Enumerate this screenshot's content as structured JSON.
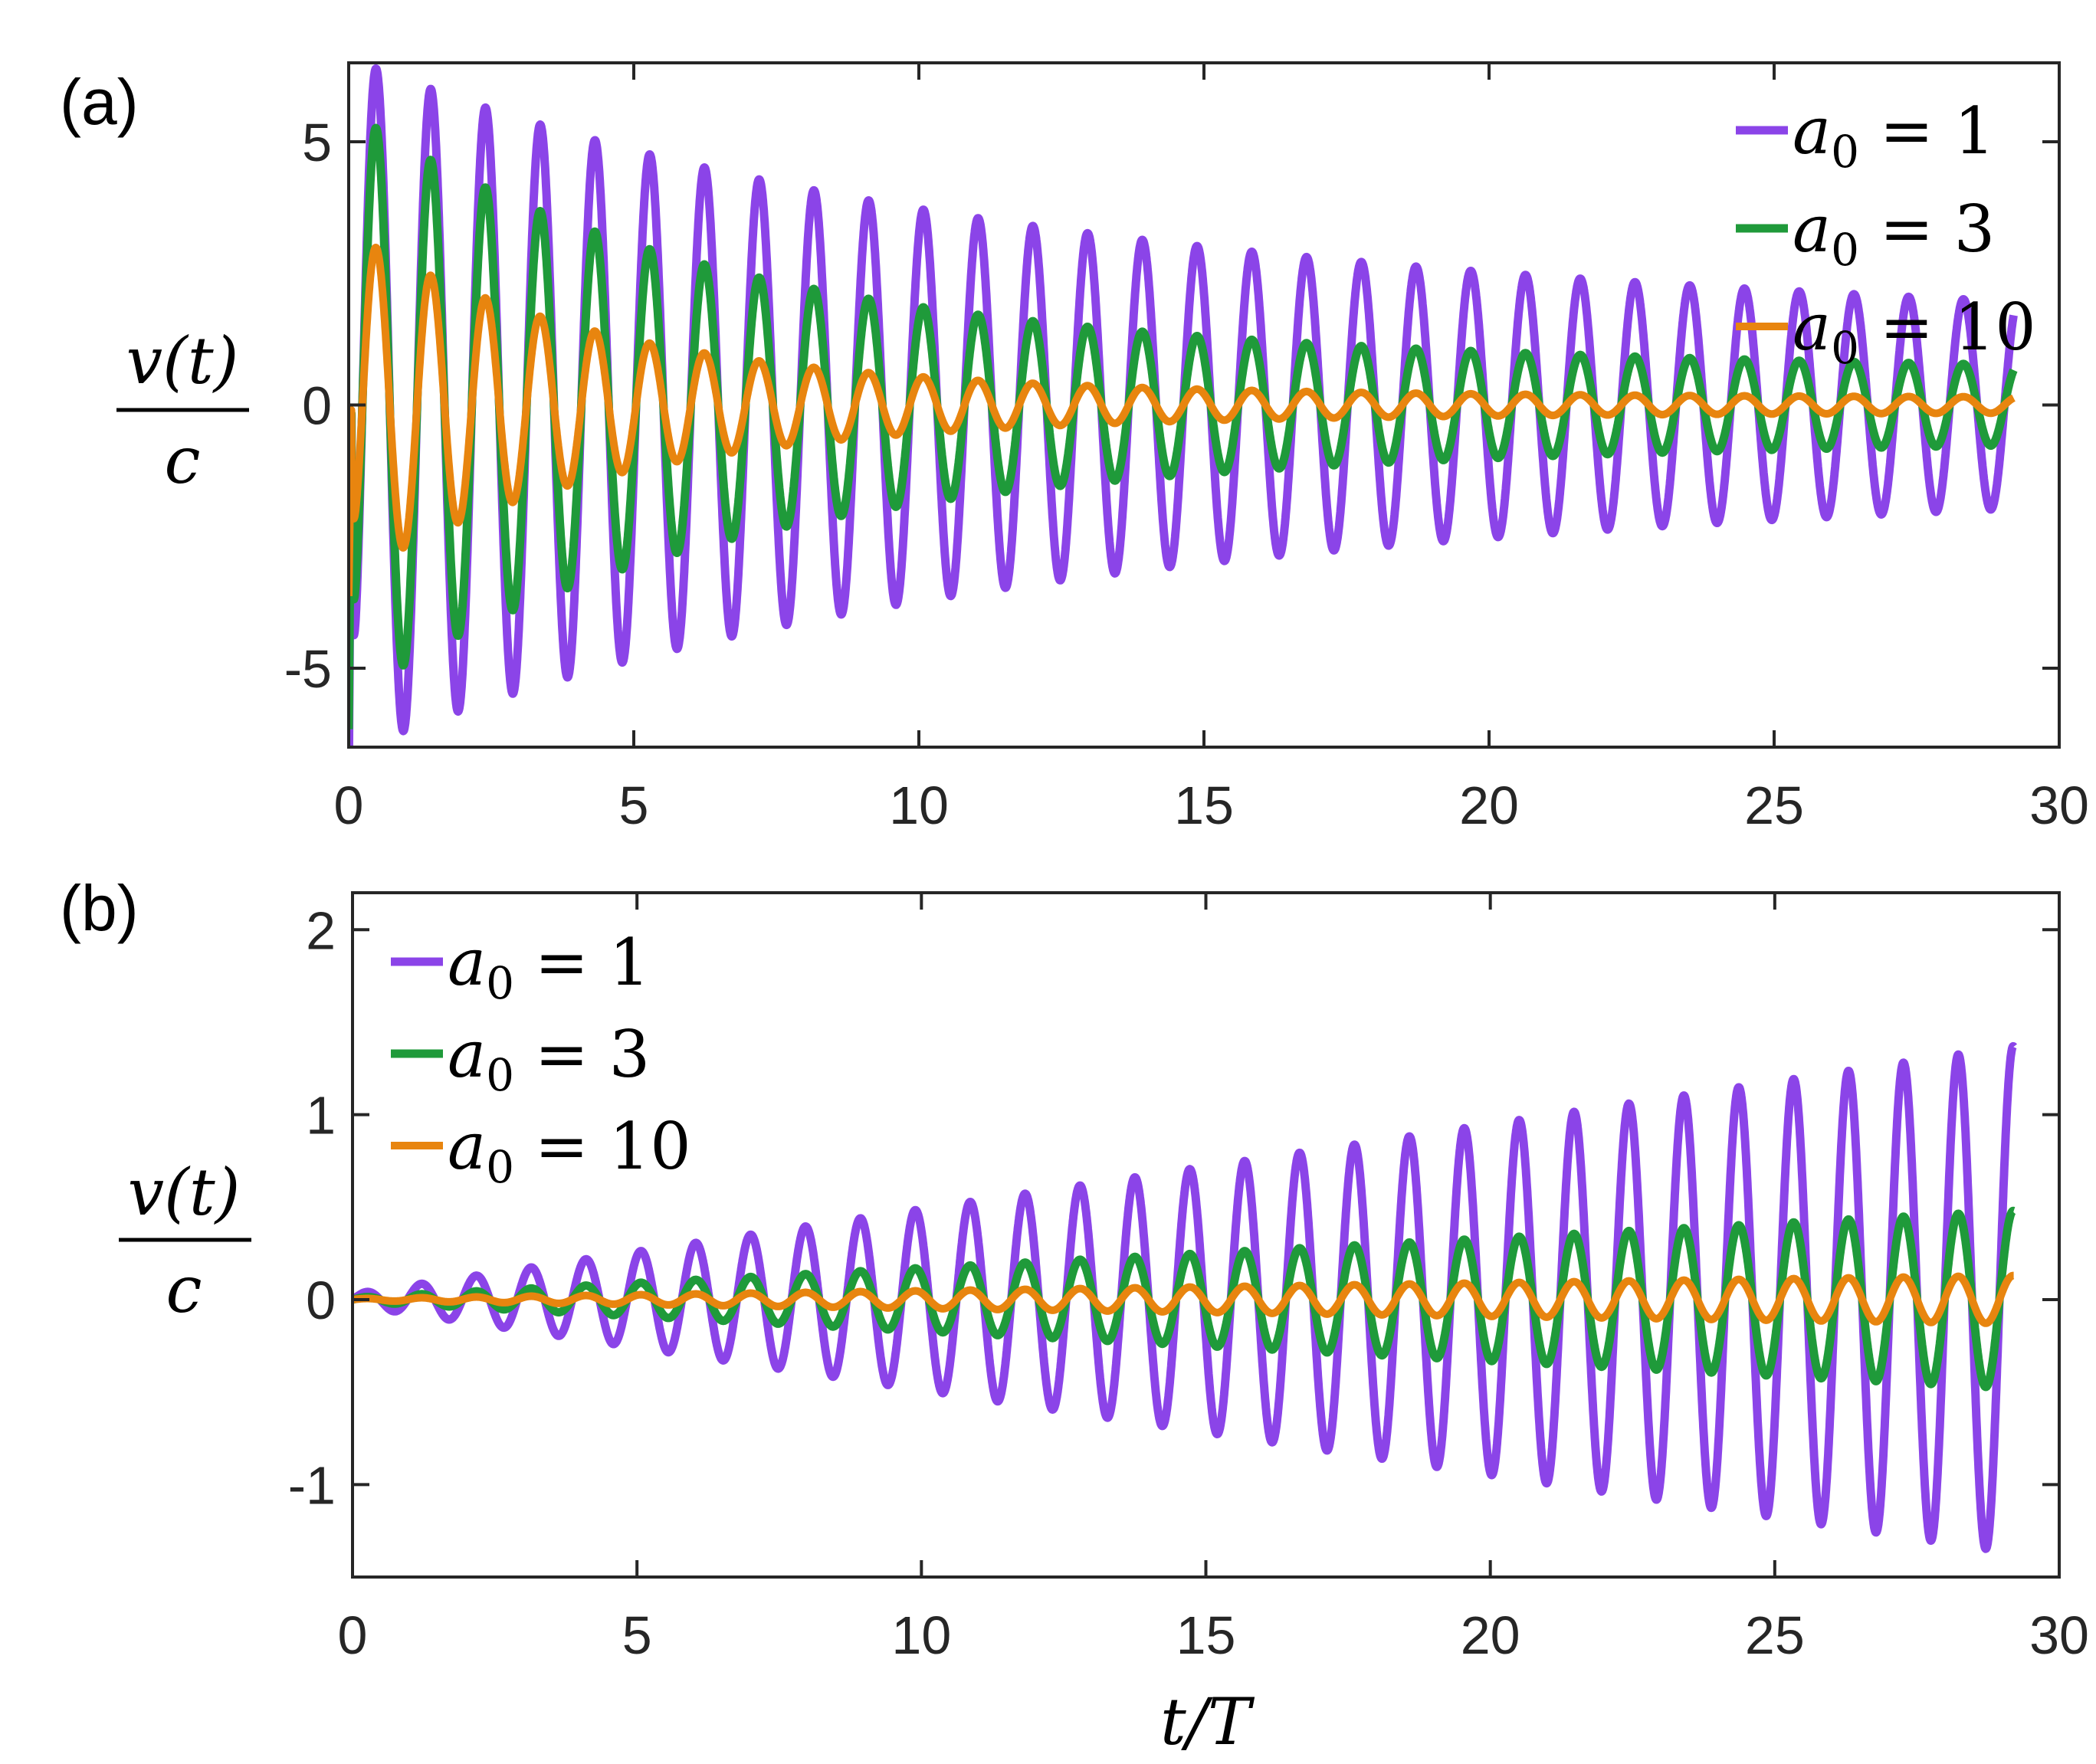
{
  "chart_data": [
    {
      "type": "line",
      "panel_label": "(a)",
      "ylabel_top": "v(t)",
      "ylabel_bottom": "c",
      "xlabel": "",
      "xlim": [
        0,
        30
      ],
      "ylim": [
        -6.5,
        6.5
      ],
      "xticks": [
        "0",
        "5",
        "10",
        "15",
        "20",
        "25",
        "30"
      ],
      "yticks": [
        "-5",
        "0",
        "5"
      ],
      "legend_position": "top-right",
      "series": [
        {
          "name_base": "a",
          "name_sub": "0",
          "name_rest": " = 1",
          "color": "#8b44e8",
          "amplitude": 6.6,
          "period": 0.96,
          "decay": 0.105,
          "floor": 0.42,
          "phase": 0.0,
          "t_end": 29.2,
          "width": 11
        },
        {
          "name_base": "a",
          "name_sub": "0",
          "name_rest": " = 3",
          "color": "#1f9a3a",
          "amplitude": 5.6,
          "period": 0.96,
          "decay": 0.16,
          "floor": 0.2,
          "phase": 0.0,
          "t_end": 29.2,
          "width": 11
        },
        {
          "name_base": "a",
          "name_sub": "0",
          "name_rest": " = 10",
          "color": "#e8850f",
          "amplitude": 3.3,
          "period": 0.96,
          "decay": 0.22,
          "floor": 0.07,
          "phase": 0.0,
          "t_end": 29.2,
          "width": 10
        }
      ]
    },
    {
      "type": "line",
      "panel_label": "(b)",
      "ylabel_top": "v(t)",
      "ylabel_bottom": "c",
      "xlabel": "t/T",
      "xlim": [
        0,
        30
      ],
      "ylim": [
        -1.5,
        2.2
      ],
      "xticks": [
        "0",
        "5",
        "10",
        "15",
        "20",
        "25",
        "30"
      ],
      "yticks": [
        "-1",
        "0",
        "1",
        "2"
      ],
      "legend_position": "top-left",
      "series": [
        {
          "name_base": "a",
          "name_sub": "0",
          "name_rest": " = 1",
          "color": "#8b44e8",
          "amplitude_start": 0.03,
          "amplitude_end": 1.37,
          "period": 0.965,
          "t_end": 29.2,
          "width": 11
        },
        {
          "name_base": "a",
          "name_sub": "0",
          "name_rest": " = 3",
          "color": "#1f9a3a",
          "amplitude_start": 0.01,
          "amplitude_end": 0.48,
          "period": 0.965,
          "t_end": 29.2,
          "width": 11
        },
        {
          "name_base": "a",
          "name_sub": "0",
          "name_rest": " = 10",
          "color": "#e8850f",
          "amplitude_start": 0.005,
          "amplitude_end": 0.13,
          "period": 0.965,
          "t_end": 29.2,
          "width": 10
        }
      ]
    }
  ]
}
